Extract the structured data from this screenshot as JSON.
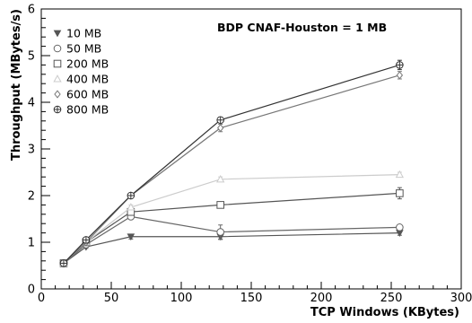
{
  "chart_data": {
    "type": "line",
    "title": "",
    "annotation": "BDP CNAF-Houston = 1 MB",
    "xlabel": "TCP Windows (KBytes)",
    "ylabel": "Throughput (MBytes/s)",
    "xlim": [
      0,
      300
    ],
    "ylim": [
      0,
      6
    ],
    "xticks": [
      0,
      50,
      100,
      150,
      200,
      250,
      300
    ],
    "yticks": [
      0,
      1,
      2,
      3,
      4,
      5,
      6
    ],
    "grid": false,
    "legend_position": "top-left",
    "x": [
      16,
      32,
      64,
      128,
      256
    ],
    "series": [
      {
        "name": "10 MB",
        "marker": "triangle-down",
        "color": "#555555",
        "values": [
          0.55,
          0.9,
          1.12,
          1.12,
          1.2
        ],
        "errors": [
          0.03,
          0.03,
          0.05,
          0.06,
          0.05
        ]
      },
      {
        "name": "50 MB",
        "marker": "circle",
        "color": "#666666",
        "values": [
          0.55,
          0.95,
          1.55,
          1.22,
          1.32
        ],
        "errors": [
          0.03,
          0.03,
          0.05,
          0.15,
          0.05
        ]
      },
      {
        "name": "200 MB",
        "marker": "square",
        "color": "#555555",
        "values": [
          0.55,
          1.0,
          1.65,
          1.8,
          2.05
        ],
        "errors": [
          0.03,
          0.03,
          0.05,
          0.06,
          0.12
        ]
      },
      {
        "name": "400 MB",
        "marker": "triangle-up",
        "color": "#cccccc",
        "values": [
          0.55,
          1.0,
          1.75,
          2.35,
          2.45
        ],
        "errors": [
          0.03,
          0.03,
          0.05,
          0.05,
          0.05
        ]
      },
      {
        "name": "600 MB",
        "marker": "diamond",
        "color": "#777777",
        "values": [
          0.55,
          1.0,
          2.0,
          3.45,
          4.58
        ],
        "errors": [
          0.03,
          0.03,
          0.05,
          0.08,
          0.08
        ]
      },
      {
        "name": "800 MB",
        "marker": "cross-circle",
        "color": "#333333",
        "values": [
          0.55,
          1.05,
          2.0,
          3.62,
          4.8
        ],
        "errors": [
          0.03,
          0.03,
          0.05,
          0.06,
          0.1
        ]
      }
    ]
  }
}
